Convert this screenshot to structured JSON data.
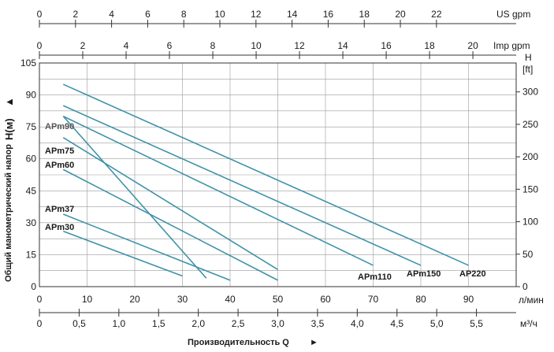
{
  "chart_data": {
    "type": "line",
    "x_primary": {
      "unit": "л/мин",
      "range": [
        0,
        100
      ],
      "ticks": [
        0,
        10,
        20,
        30,
        40,
        50,
        60,
        70,
        80,
        90
      ]
    },
    "y_primary": {
      "range": [
        0,
        105
      ],
      "ticks": [
        0,
        15,
        30,
        45,
        60,
        75,
        90,
        105
      ]
    },
    "y_secondary": {
      "unit_top": "H",
      "unit": "[ft]",
      "ticks": [
        0,
        50,
        100,
        150,
        200,
        250,
        300
      ]
    },
    "axis_us_gpm": {
      "label": "US gpm",
      "ticks": [
        "0",
        "2",
        "4",
        "6",
        "8",
        "10",
        "12",
        "14",
        "16",
        "18",
        "20",
        "22"
      ]
    },
    "axis_imp_gpm": {
      "label": "Imp gpm",
      "ticks": [
        "0",
        "2",
        "4",
        "6",
        "8",
        "10",
        "12",
        "14",
        "16",
        "18",
        "20"
      ]
    },
    "axis_m3h": {
      "label": "м³/ч",
      "ticks": [
        "0",
        "0,5",
        "1,0",
        "1,5",
        "2,0",
        "2,5",
        "3,0",
        "3,5",
        "4,0",
        "4,5",
        "5,0",
        "5,5"
      ]
    },
    "xlabel": "Производительность Q",
    "ylabel": "Общий манометрический напор",
    "ylabel_unit": "H(м)",
    "grid": true,
    "series": [
      {
        "name": "APm30",
        "x": [
          5,
          30
        ],
        "y": [
          26,
          5
        ]
      },
      {
        "name": "APm37",
        "x": [
          5,
          40
        ],
        "y": [
          34,
          3
        ]
      },
      {
        "name": "APm60",
        "x": [
          5,
          50
        ],
        "y": [
          55,
          3
        ]
      },
      {
        "name": "APm75",
        "x": [
          5,
          50
        ],
        "y": [
          70,
          8
        ]
      },
      {
        "name": "APm90",
        "x": [
          5,
          35
        ],
        "y": [
          80,
          4
        ]
      },
      {
        "name": "APm110",
        "x": [
          5,
          70
        ],
        "y": [
          80,
          10
        ]
      },
      {
        "name": "APm150",
        "x": [
          5,
          80
        ],
        "y": [
          85,
          10
        ]
      },
      {
        "name": "AP220",
        "x": [
          5,
          90
        ],
        "y": [
          95,
          10
        ]
      }
    ]
  },
  "arrow_y": "▲",
  "arrow_x": "►",
  "line_color": "#3e93a8"
}
